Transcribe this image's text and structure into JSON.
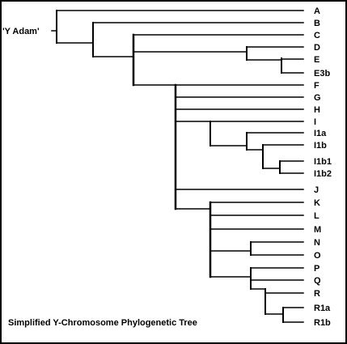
{
  "root_label": "'Y Adam'",
  "caption": "Simplified Y-Chromosome Phylogenetic Tree",
  "line_color": "#000000",
  "leaves": [
    "A",
    "B",
    "C",
    "D",
    "E",
    "E3b",
    "F",
    "G",
    "H",
    "I",
    "I1a",
    "I1b",
    "I1b1",
    "I1b2",
    "J",
    "K",
    "L",
    "M",
    "N",
    "O",
    "P",
    "Q",
    "R",
    "R1a",
    "R1b"
  ]
}
